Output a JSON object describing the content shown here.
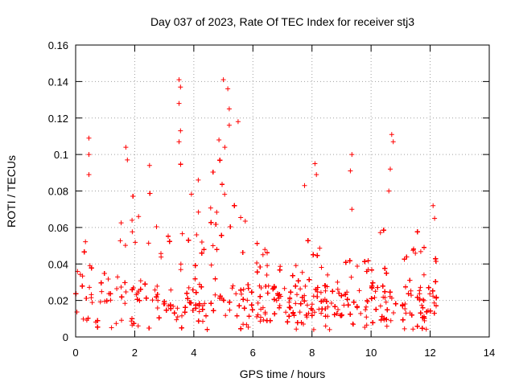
{
  "chart_data": {
    "type": "scatter",
    "title": "Day 037 of 2023, Rate Of TEC Index for receiver stj3",
    "xlabel": "GPS time / hours",
    "ylabel": "ROTI / TECUs",
    "xlim": [
      0,
      14
    ],
    "ylim": [
      0,
      0.16
    ],
    "x_ticks": [
      0,
      2,
      4,
      6,
      8,
      10,
      12,
      14
    ],
    "y_ticks": [
      0,
      0.02,
      0.04,
      0.06,
      0.08,
      0.1,
      0.12,
      0.14,
      0.16
    ],
    "x_tick_labels": [
      "0",
      "2",
      "4",
      "6",
      "8",
      "10",
      "12",
      "14"
    ],
    "y_tick_labels": [
      "0",
      "0.02",
      "0.04",
      "0.06",
      "0.08",
      "0.1",
      "0.12",
      "0.14",
      "0.16"
    ],
    "grid": true,
    "marker": "+",
    "marker_color": "#ff0000",
    "series": [
      {
        "name": "ROTI",
        "x_range": [
          0,
          12.25
        ],
        "sample_points": [
          {
            "x": 0.45,
            "y": 0.109
          },
          {
            "x": 0.45,
            "y": 0.1
          },
          {
            "x": 0.45,
            "y": 0.089
          },
          {
            "x": 1.7,
            "y": 0.104
          },
          {
            "x": 1.75,
            "y": 0.097
          },
          {
            "x": 2.5,
            "y": 0.094
          },
          {
            "x": 3.5,
            "y": 0.141
          },
          {
            "x": 3.55,
            "y": 0.137
          },
          {
            "x": 3.5,
            "y": 0.128
          },
          {
            "x": 3.55,
            "y": 0.113
          },
          {
            "x": 3.5,
            "y": 0.107
          },
          {
            "x": 4.15,
            "y": 0.086
          },
          {
            "x": 5.0,
            "y": 0.141
          },
          {
            "x": 5.15,
            "y": 0.136
          },
          {
            "x": 5.2,
            "y": 0.125
          },
          {
            "x": 5.2,
            "y": 0.116
          },
          {
            "x": 5.5,
            "y": 0.118
          },
          {
            "x": 4.85,
            "y": 0.108
          },
          {
            "x": 5.05,
            "y": 0.104
          },
          {
            "x": 7.75,
            "y": 0.083
          },
          {
            "x": 8.1,
            "y": 0.095
          },
          {
            "x": 8.15,
            "y": 0.089
          },
          {
            "x": 9.35,
            "y": 0.1
          },
          {
            "x": 9.3,
            "y": 0.091
          },
          {
            "x": 9.35,
            "y": 0.07
          },
          {
            "x": 10.7,
            "y": 0.111
          },
          {
            "x": 10.75,
            "y": 0.107
          },
          {
            "x": 10.65,
            "y": 0.092
          },
          {
            "x": 10.6,
            "y": 0.08
          },
          {
            "x": 12.1,
            "y": 0.072
          },
          {
            "x": 12.15,
            "y": 0.065
          }
        ]
      }
    ]
  }
}
